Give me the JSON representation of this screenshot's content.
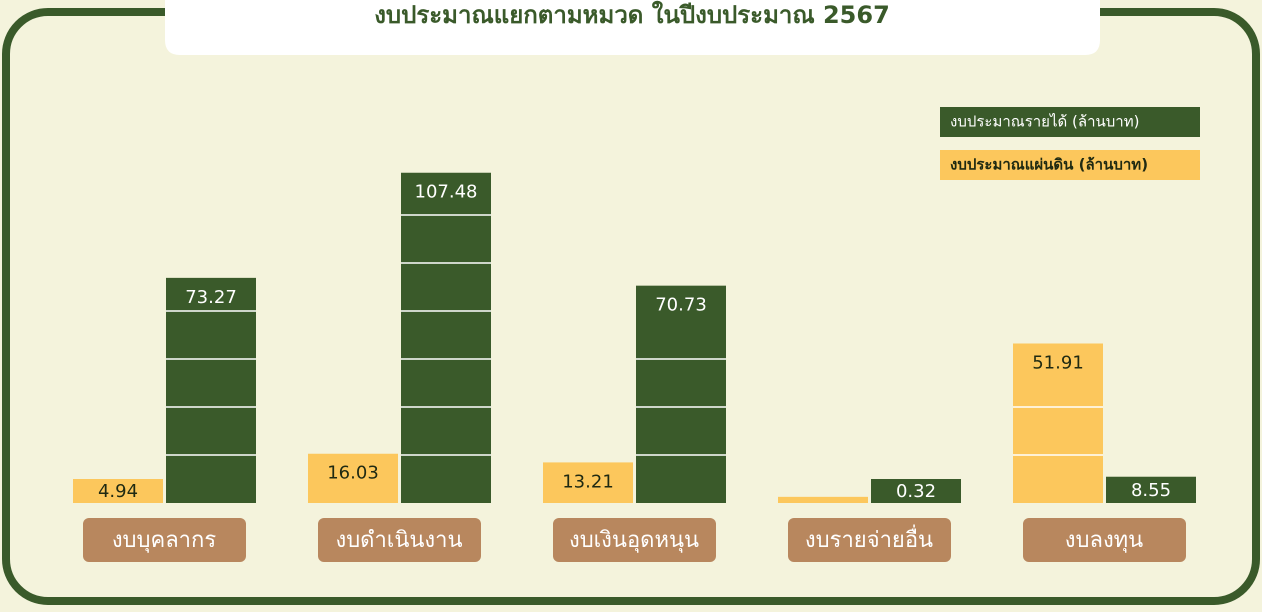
{
  "chart_data": {
    "type": "bar",
    "title": "งบประมาณแยกตามหมวด ในปีงบประมาณ 2567",
    "categories": [
      "งบบุคลากร",
      "งบดำเนินงาน",
      "งบเงินอุดหนุน",
      "งบรายจ่ายอื่น",
      "งบลงทุน"
    ],
    "series": [
      {
        "name": "งบประมาณแผ่นดิน (ล้านบาท)",
        "color": "#fcc75c",
        "values": [
          4.94,
          16.03,
          13.21,
          2,
          51.91
        ],
        "value_labels": [
          "4.94",
          "16.03",
          "13.21",
          null,
          "51.91"
        ]
      },
      {
        "name": "งบประมาณรายได้ (ล้านบาท)",
        "color": "#3a5a2a",
        "values": [
          73.27,
          107.48,
          70.73,
          0.32,
          8.55
        ]
      }
    ],
    "ylim": [
      0,
      110
    ]
  }
}
